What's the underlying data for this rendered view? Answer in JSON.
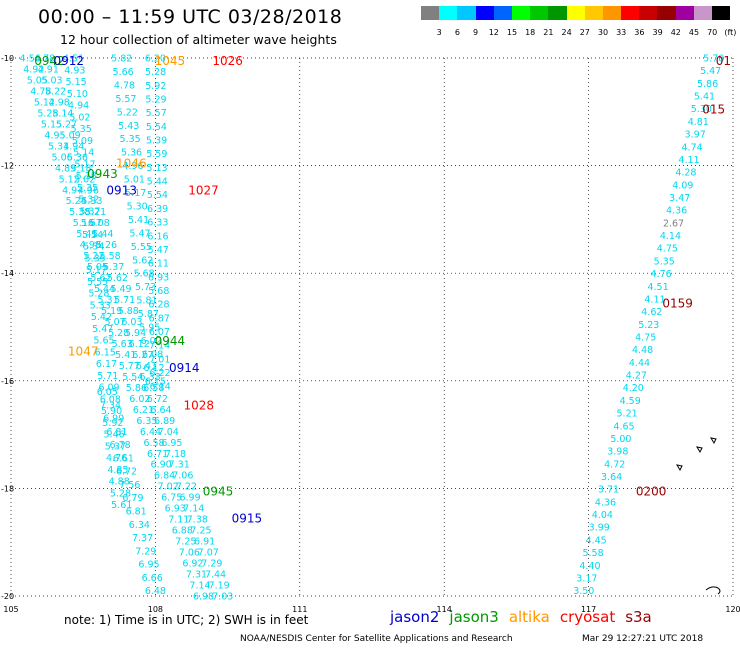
{
  "title": "00:00 – 11:59 UTC 03/28/2018",
  "subtitle": "12 hour collection of altimeter wave heights",
  "colorbar": {
    "colors": [
      "#808080",
      "#00ffff",
      "#00c8ff",
      "#0000ff",
      "#0064ff",
      "#00ff00",
      "#00c800",
      "#009600",
      "#ffff00",
      "#ffc800",
      "#ff9600",
      "#ff0000",
      "#c80000",
      "#960000",
      "#a000a0",
      "#c896c8",
      "#000000"
    ],
    "labels": [
      "3",
      "6",
      "9",
      "12",
      "15",
      "18",
      "21",
      "24",
      "27",
      "30",
      "33",
      "36",
      "39",
      "42",
      "45",
      "70",
      "(ft)"
    ]
  },
  "axes": {
    "x_ticks": [
      "105",
      "108",
      "111",
      "114",
      "117",
      "120"
    ],
    "y_ticks": [
      "-10",
      "-12",
      "-14",
      "-16",
      "-18",
      "-20"
    ]
  },
  "satellites": [
    {
      "name": "jason2",
      "color": "#0000cc"
    },
    {
      "name": "jason3",
      "color": "#009900"
    },
    {
      "name": "altika",
      "color": "#ff9900"
    },
    {
      "name": "cryosat",
      "color": "#ff0000"
    },
    {
      "name": "s3a",
      "color": "#990000"
    }
  ],
  "note": "note:  1) Time is in UTC;  2) SWH is in feet",
  "credit": "NOAA/NESDIS Center for Satellite Applications and Research",
  "credit_date": "Mar 29 12:27:21 UTC 2018",
  "time_labels": [
    {
      "text": "1045",
      "sat": "altika",
      "lon": 108.3,
      "lat": -10.05
    },
    {
      "text": "1026",
      "sat": "cryosat",
      "lon": 109.5,
      "lat": -10.05
    },
    {
      "text": "0942",
      "sat": "jason3",
      "lon": 105.8,
      "lat": -10.05
    },
    {
      "text": "0912",
      "sat": "jason2",
      "lon": 106.2,
      "lat": -10.05
    },
    {
      "text": "1046",
      "sat": "altika",
      "lon": 107.5,
      "lat": -11.95
    },
    {
      "text": "0943",
      "sat": "jason3",
      "lon": 106.9,
      "lat": -12.15
    },
    {
      "text": "0913",
      "sat": "jason2",
      "lon": 107.3,
      "lat": -12.45
    },
    {
      "text": "1027",
      "sat": "cryosat",
      "lon": 109.0,
      "lat": -12.45
    },
    {
      "text": "1047",
      "sat": "altika",
      "lon": 106.5,
      "lat": -15.45
    },
    {
      "text": "0944",
      "sat": "jason3",
      "lon": 108.3,
      "lat": -15.25
    },
    {
      "text": "0914",
      "sat": "jason2",
      "lon": 108.6,
      "lat": -15.75
    },
    {
      "text": "1028",
      "sat": "cryosat",
      "lon": 108.9,
      "lat": -16.45
    },
    {
      "text": "0945",
      "sat": "jason3",
      "lon": 109.3,
      "lat": -18.05
    },
    {
      "text": "0915",
      "sat": "jason2",
      "lon": 109.9,
      "lat": -18.55
    },
    {
      "text": "0159",
      "sat": "s3a",
      "lon": 118.85,
      "lat": -14.55
    },
    {
      "text": "0200",
      "sat": "s3a",
      "lon": 118.3,
      "lat": -18.05
    },
    {
      "text": "015",
      "sat": "s3a",
      "lon": 119.6,
      "lat": -10.95
    },
    {
      "text": "01",
      "sat": "s3a",
      "lon": 119.8,
      "lat": -10.05
    }
  ],
  "tracks": [
    {
      "id": "jason3",
      "start": [
        105.4,
        -10.0
      ],
      "end": [
        109.0,
        -20.0
      ],
      "values": [
        "4.56",
        "4.92",
        "5.05",
        "4.78",
        "5.12",
        "5.28",
        "5.15",
        "4.95",
        "5.31",
        "5.06",
        "4.89",
        "5.12",
        "4.97",
        "5.24",
        "5.38",
        "5.16",
        "5.41",
        "4.98",
        "5.22",
        "5.05",
        "5.62",
        "5.44",
        "5.31",
        "5.19",
        "5.07",
        "5.28",
        "5.63",
        "5.41",
        "5.77",
        "5.54",
        "5.86",
        "6.02",
        "6.21",
        "6.35",
        "6.44",
        "6.58",
        "6.71",
        "6.90",
        "6.84",
        "7.02",
        "6.75",
        "6.93",
        "7.11",
        "6.88",
        "7.25",
        "7.06",
        "6.92",
        "7.31",
        "7.14",
        "6.98"
      ]
    },
    {
      "id": "jason2",
      "start": [
        105.7,
        -10.0
      ],
      "end": [
        109.4,
        -20.0
      ],
      "values": [
        "4.78",
        "4.91",
        "5.03",
        "5.22",
        "4.98",
        "5.14",
        "5.27",
        "5.09",
        "4.94",
        "5.36",
        "5.18",
        "5.02",
        "4.96",
        "5.33",
        "5.21",
        "5.08",
        "5.44",
        "5.26",
        "5.58",
        "5.37",
        "5.62",
        "5.49",
        "5.71",
        "5.88",
        "6.03",
        "5.94",
        "6.12",
        "6.27",
        "6.41",
        "6.33",
        "6.58",
        "6.72",
        "6.64",
        "6.89",
        "7.04",
        "6.95",
        "7.18",
        "7.31",
        "7.06",
        "7.22",
        "6.99",
        "7.14",
        "7.38",
        "7.25",
        "6.91",
        "7.07",
        "7.29",
        "7.44",
        "7.19",
        "7.03"
      ]
    },
    {
      "id": "altika",
      "start": [
        106.3,
        -10.0
      ],
      "end": [
        107.3,
        -18.3
      ],
      "values": [
        "4.51",
        "4.93",
        "5.15",
        "5.10",
        "4.94",
        "5.02",
        "5.35",
        "5.09",
        "5.14",
        "5.17",
        "5.18",
        "5.35",
        "5.32",
        "5.37",
        "5.67",
        "5.54",
        "5.34",
        "5.35",
        "5.17",
        "5.55",
        "5.28",
        "5.33",
        "5.42",
        "5.47",
        "5.65",
        "6.15",
        "6.17",
        "5.71",
        "6.09",
        "6.08",
        "5.90",
        "5.92",
        "5.46",
        "5.37",
        "4.76",
        "4.85",
        "4.88",
        "5.28",
        "5.61"
      ]
    },
    {
      "id": "altika2",
      "start": [
        107.3,
        -10.0
      ],
      "end": [
        108.0,
        -16.0
      ],
      "values": [
        "5.82",
        "5.66",
        "4.78",
        "5.57",
        "5.22",
        "5.43",
        "5.35",
        "5.36",
        "4.96",
        "5.01",
        "5.17",
        "5.30",
        "5.41",
        "5.47",
        "5.55",
        "5.62",
        "5.68",
        "5.73",
        "5.81",
        "5.87",
        "5.95",
        "6.02",
        "6.08",
        "6.12",
        "6.15"
      ]
    },
    {
      "id": "cryosat",
      "start": [
        108.0,
        -10.0
      ],
      "end": [
        108.1,
        -16.1
      ],
      "values": [
        "6.20",
        "5.28",
        "5.92",
        "5.29",
        "5.57",
        "5.54",
        "5.39",
        "5.59",
        "5.13",
        "5.44",
        "5.54",
        "6.39",
        "6.33",
        "6.16",
        "5.47",
        "6.11",
        "6.93",
        "5.68",
        "6.28",
        "6.87",
        "6.07",
        "7.14",
        "7.01",
        "6.22",
        "6.14"
      ]
    },
    {
      "id": "lower",
      "start": [
        107.0,
        -16.2
      ],
      "end": [
        108.0,
        -19.9
      ],
      "values": [
        "6.05",
        "7.34",
        "6.99",
        "6.81",
        "6.78",
        "6.61",
        "6.72",
        "7.56",
        "6.79",
        "6.81",
        "6.34",
        "7.37",
        "7.29",
        "6.95",
        "6.66",
        "6.48"
      ]
    },
    {
      "id": "s3a",
      "start": [
        119.6,
        -10.0
      ],
      "end": [
        116.9,
        -19.9
      ],
      "values": [
        "5.78",
        "5.47",
        "5.86",
        "5.41",
        "5.30",
        "4.81",
        "3.97",
        "4.74",
        "4.11",
        "4.28",
        "4.09",
        "3.47",
        "4.36",
        "2.67",
        "4.14",
        "4.75",
        "5.35",
        "4.76",
        "4.51",
        "4.11",
        "4.62",
        "5.23",
        "4.75",
        "4.48",
        "4.44",
        "4.27",
        "4.20",
        "4.59",
        "5.21",
        "4.65",
        "5.00",
        "3.98",
        "4.72",
        "3.64",
        "3.71",
        "4.36",
        "4.04",
        "3.99",
        "4.45",
        "5.58",
        "4.40",
        "3.17",
        "3.50"
      ]
    }
  ]
}
